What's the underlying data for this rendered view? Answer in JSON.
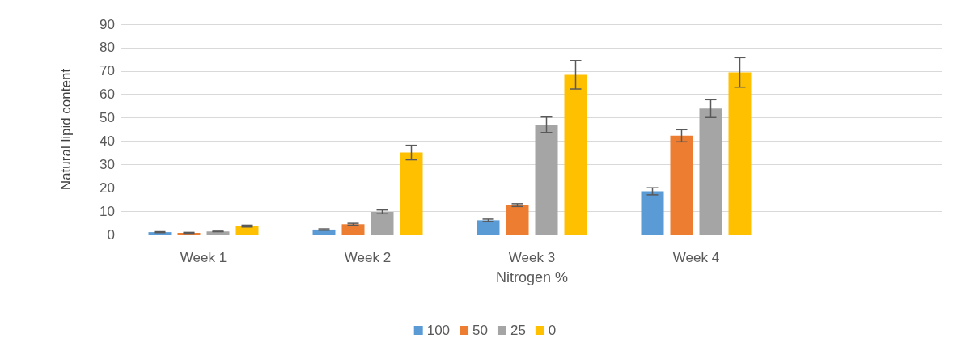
{
  "chart_data": {
    "type": "bar",
    "xlabel": "Nitrogen %",
    "ylabel": "Natural lipid content",
    "categories": [
      "Week 1",
      "Week 2",
      "Week 3",
      "Week 4",
      null
    ],
    "series": [
      {
        "name": "100",
        "color": "#5b9bd5",
        "values": [
          1.0,
          2.1,
          6.1,
          18.5,
          null
        ],
        "errors": [
          0.2,
          0.3,
          0.5,
          1.5,
          null
        ]
      },
      {
        "name": "50",
        "color": "#ed7d31",
        "values": [
          0.7,
          4.4,
          12.6,
          42.3,
          null
        ],
        "errors": [
          0.2,
          0.4,
          0.6,
          2.6,
          null
        ]
      },
      {
        "name": "25",
        "color": "#a5a5a5",
        "values": [
          1.3,
          9.7,
          47,
          53.9,
          null
        ],
        "errors": [
          0.1,
          0.8,
          3.3,
          3.8,
          null
        ]
      },
      {
        "name": "0",
        "color": "#ffc000",
        "values": [
          3.6,
          35.1,
          68.4,
          69.4,
          null
        ],
        "errors": [
          0.4,
          3.1,
          6.1,
          6.3,
          null
        ]
      }
    ],
    "ylim": [
      0,
      90
    ],
    "yticks": [
      0,
      10,
      20,
      30,
      40,
      50,
      60,
      70,
      80,
      90
    ],
    "grid": "y",
    "legend": "bottom"
  }
}
